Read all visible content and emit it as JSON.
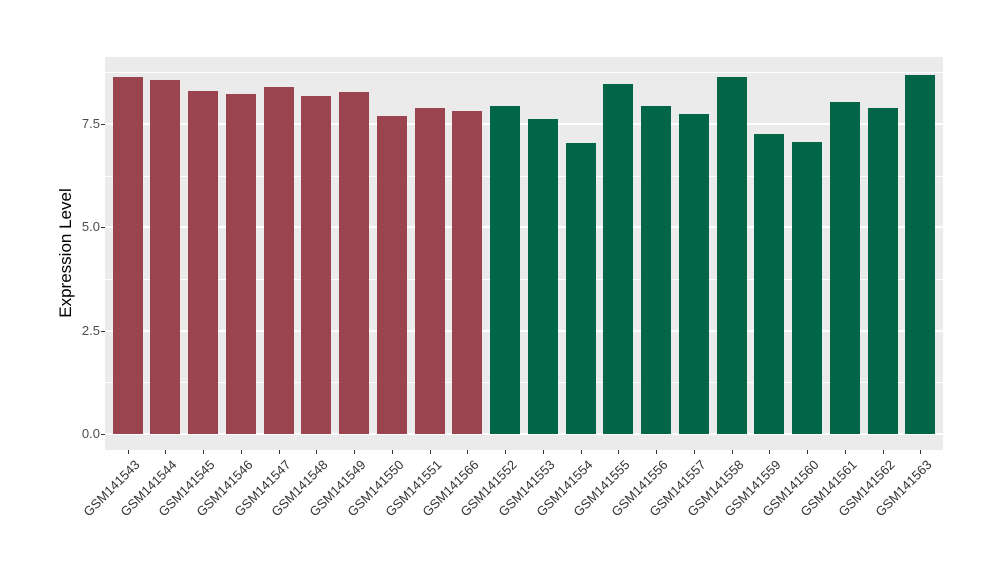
{
  "chart_data": {
    "type": "bar",
    "title": "",
    "xlabel": "",
    "ylabel": "Expression Level",
    "ylim": [
      0,
      9.13
    ],
    "yticks": [
      0.0,
      2.5,
      5.0,
      7.5
    ],
    "grid": {
      "major": true,
      "minor": true,
      "gridline_color": "#FFFFFF"
    },
    "panel_background": "#EBEBEB",
    "legend": "none",
    "bar_group_colors": {
      "left-group": "#9A4450",
      "right-group": "#006647"
    },
    "bars": [
      {
        "label": "GSM141543",
        "value": 8.65,
        "color": "#9A4450"
      },
      {
        "label": "GSM141544",
        "value": 8.57,
        "color": "#9A4450"
      },
      {
        "label": "GSM141545",
        "value": 8.31,
        "color": "#9A4450"
      },
      {
        "label": "GSM141546",
        "value": 8.22,
        "color": "#9A4450"
      },
      {
        "label": "GSM141547",
        "value": 8.41,
        "color": "#9A4450"
      },
      {
        "label": "GSM141548",
        "value": 8.19,
        "color": "#9A4450"
      },
      {
        "label": "GSM141549",
        "value": 8.29,
        "color": "#9A4450"
      },
      {
        "label": "GSM141550",
        "value": 7.69,
        "color": "#9A4450"
      },
      {
        "label": "GSM141551",
        "value": 7.9,
        "color": "#9A4450"
      },
      {
        "label": "GSM141566",
        "value": 7.82,
        "color": "#9A4450"
      },
      {
        "label": "GSM141552",
        "value": 7.95,
        "color": "#006647"
      },
      {
        "label": "GSM141553",
        "value": 7.62,
        "color": "#006647"
      },
      {
        "label": "GSM141554",
        "value": 7.05,
        "color": "#006647"
      },
      {
        "label": "GSM141555",
        "value": 8.46,
        "color": "#006647"
      },
      {
        "label": "GSM141556",
        "value": 7.94,
        "color": "#006647"
      },
      {
        "label": "GSM141557",
        "value": 7.74,
        "color": "#006647"
      },
      {
        "label": "GSM141558",
        "value": 8.65,
        "color": "#006647"
      },
      {
        "label": "GSM141559",
        "value": 7.25,
        "color": "#006647"
      },
      {
        "label": "GSM141560",
        "value": 7.06,
        "color": "#006647"
      },
      {
        "label": "GSM141561",
        "value": 8.04,
        "color": "#006647"
      },
      {
        "label": "GSM141562",
        "value": 7.88,
        "color": "#006647"
      },
      {
        "label": "GSM141563",
        "value": 8.69,
        "color": "#006647"
      }
    ]
  }
}
